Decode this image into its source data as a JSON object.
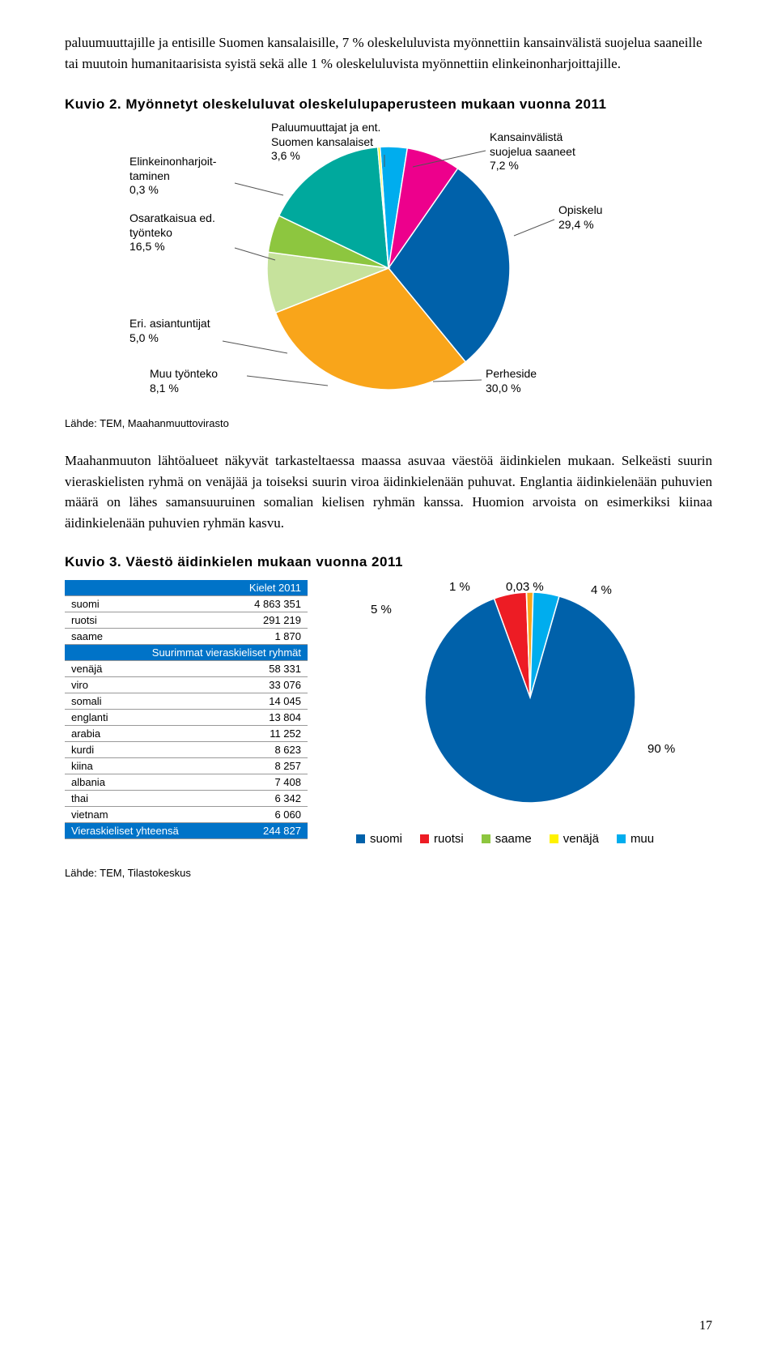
{
  "intro": "paluumuuttajille ja entisille Suomen kansalaisille, 7 % oleskeluluvista myönnettiin kansainvälistä suojelua saaneille tai muutoin humanitaarisista syistä sekä alle 1 % oleskeluluvista myönnettiin elinkeinonharjoittajille.",
  "kuvio2": {
    "title": "Kuvio 2. Myönnetyt oleskeluluvat oleskelulupaperusteen mukaan vuonna 2011",
    "type": "pie",
    "slices": [
      {
        "label": "Paluumuuttajat ja ent.\nSuomen kansalaiset\n3,6 %",
        "value": 3.6,
        "color": "#00adee"
      },
      {
        "label": "Kansainvälistä\nsuojelua saaneet\n7,2 %",
        "value": 7.2,
        "color": "#ed008c"
      },
      {
        "label": "Opiskelu\n29,4 %",
        "value": 29.4,
        "color": "#0061aa"
      },
      {
        "label": "Perheside\n30,0 %",
        "value": 30.0,
        "color": "#f9a51a"
      },
      {
        "label": "Muu työnteko\n8,1 %",
        "value": 8.1,
        "color": "#c6e29c"
      },
      {
        "label": "Eri. asiantuntijat\n5,0 %",
        "value": 5.0,
        "color": "#8dc63f"
      },
      {
        "label": "Osaratkaisua ed.\ntyönteko\n16,5 %",
        "value": 16.5,
        "color": "#00a99d"
      },
      {
        "label": "Elinkeinonharjoit-\ntaminen\n0,3 %",
        "value": 0.3,
        "color": "#fff200"
      }
    ],
    "labels": {
      "paluu": "Paluumuuttajat ja ent.\nSuomen kansalaiset\n3,6 %",
      "kansain": "Kansainvälistä\nsuojelua saaneet\n7,2 %",
      "opiskelu": "Opiskelu\n29,4 %",
      "perheside": "Perheside\n30,0 %",
      "muutyo": "Muu työnteko\n8,1 %",
      "asiantuntijat": "Eri. asiantuntijat\n5,0 %",
      "osaratkaisu": "Osaratkaisua ed.\ntyönteko\n16,5 %",
      "elinkeinon": "Elinkeinonharjoit-\ntaminen\n0,3 %"
    },
    "source": "Lähde: TEM, Maahanmuuttovirasto"
  },
  "body2": "Maahanmuuton lähtöalueet näkyvät tarkasteltaessa maassa asuvaa väestöä äidinkielen mukaan. Selkeästi suurin vieraskielisten ryhmä on venäjää ja toiseksi suurin viroa äidinkielenään puhuvat. Englantia äidinkielenään puhuvien määrä on lähes samansuuruinen somalian kielisen ryhmän kanssa. Huomion arvoista on esimerkiksi kiinaa äidinkielenään puhuvien ryhmän kasvu.",
  "kuvio3": {
    "title": "Kuvio 3. Väestö äidinkielen mukaan vuonna 2011",
    "table": {
      "header": "Kielet 2011",
      "main_rows": [
        [
          "suomi",
          "4 863 351"
        ],
        [
          "ruotsi",
          "291 219"
        ],
        [
          "saame",
          "1 870"
        ]
      ],
      "section2_header": "Suurimmat vieraskieliset ryhmät",
      "foreign_rows": [
        [
          "venäjä",
          "58 331"
        ],
        [
          "viro",
          "33 076"
        ],
        [
          "somali",
          "14 045"
        ],
        [
          "englanti",
          "13 804"
        ],
        [
          "arabia",
          "11 252"
        ],
        [
          "kurdi",
          "8 623"
        ],
        [
          "kiina",
          "8 257"
        ],
        [
          "albania",
          "7 408"
        ],
        [
          "thai",
          "6 342"
        ],
        [
          "vietnam",
          "6 060"
        ]
      ],
      "footer_row": [
        "Vieraskieliset yhteensä",
        "244 827"
      ]
    },
    "pie": {
      "type": "pie",
      "slices": [
        {
          "label": "90 %",
          "value": 90,
          "color": "#0061aa"
        },
        {
          "label": "5 %",
          "value": 5,
          "color": "#ed1c24"
        },
        {
          "label": "1 %",
          "value": 1,
          "color": "#f9a51a"
        },
        {
          "label": "0,03 %",
          "value": 0.03,
          "color": "#8dc63f"
        },
        {
          "label": "4 %",
          "value": 4,
          "color": "#00adee"
        }
      ],
      "label_90": "90 %",
      "label_5": "5 %",
      "label_1": "1 %",
      "label_003": "0,03 %",
      "label_4": "4 %"
    },
    "legend": [
      {
        "name": "suomi",
        "color": "#0061aa"
      },
      {
        "name": "ruotsi",
        "color": "#ed1c24"
      },
      {
        "name": "saame",
        "color": "#8dc63f"
      },
      {
        "name": "venäjä",
        "color": "#fff200"
      },
      {
        "name": "muu",
        "color": "#00adee"
      }
    ],
    "source": "Lähde: TEM, Tilastokeskus"
  },
  "page_number": "17"
}
